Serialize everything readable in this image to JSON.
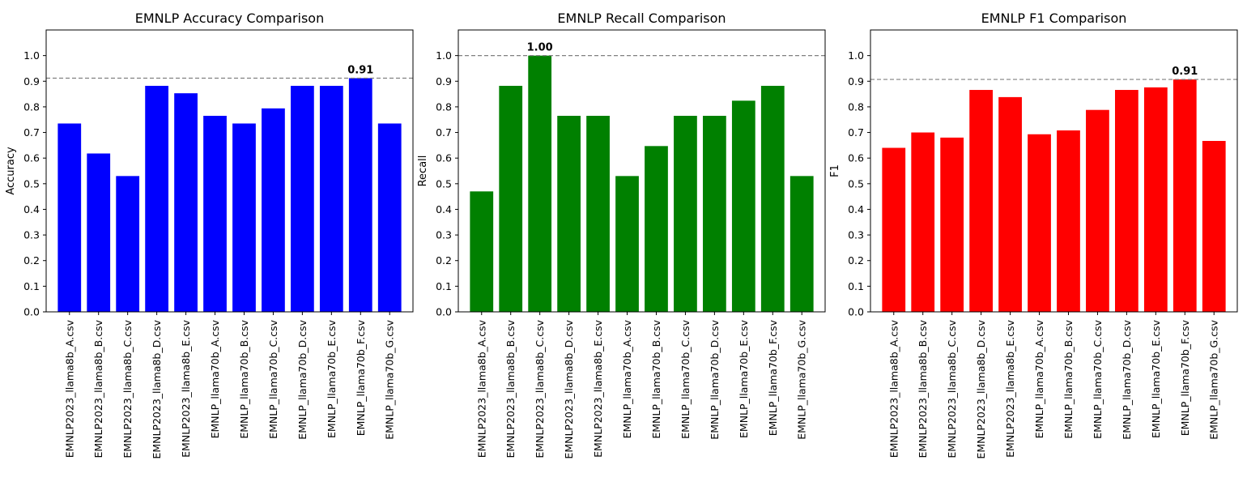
{
  "chart_data": [
    {
      "type": "bar",
      "title": "EMNLP Accuracy Comparison",
      "xlabel": "",
      "ylabel": "Accuracy",
      "color": "#0000ff",
      "categories": [
        "EMNLP2023_llama8b_A.csv",
        "EMNLP2023_llama8b_B.csv",
        "EMNLP2023_llama8b_C.csv",
        "EMNLP2023_llama8b_D.csv",
        "EMNLP2023_llama8b_E.csv",
        "EMNLP_llama70b_A.csv",
        "EMNLP_llama70b_B.csv",
        "EMNLP_llama70b_C.csv",
        "EMNLP_llama70b_D.csv",
        "EMNLP_llama70b_E.csv",
        "EMNLP_llama70b_F.csv",
        "EMNLP_llama70b_G.csv"
      ],
      "values": [
        0.735,
        0.618,
        0.53,
        0.882,
        0.853,
        0.765,
        0.735,
        0.794,
        0.882,
        0.882,
        0.912,
        0.735
      ],
      "ylim": [
        0,
        1.1
      ],
      "yticks": [
        "0.0",
        "0.1",
        "0.2",
        "0.3",
        "0.4",
        "0.5",
        "0.6",
        "0.7",
        "0.8",
        "0.9",
        "1.0"
      ],
      "ref_line": 0.912,
      "best_index": 10,
      "best_label": "0.91",
      "grid": false
    },
    {
      "type": "bar",
      "title": "EMNLP Recall Comparison",
      "xlabel": "",
      "ylabel": "Recall",
      "color": "#008000",
      "categories": [
        "EMNLP2023_llama8b_A.csv",
        "EMNLP2023_llama8b_B.csv",
        "EMNLP2023_llama8b_C.csv",
        "EMNLP2023_llama8b_D.csv",
        "EMNLP2023_llama8b_E.csv",
        "EMNLP_llama70b_A.csv",
        "EMNLP_llama70b_B.csv",
        "EMNLP_llama70b_C.csv",
        "EMNLP_llama70b_D.csv",
        "EMNLP_llama70b_E.csv",
        "EMNLP_llama70b_F.csv",
        "EMNLP_llama70b_G.csv"
      ],
      "values": [
        0.47,
        0.882,
        1.0,
        0.765,
        0.765,
        0.53,
        0.647,
        0.765,
        0.765,
        0.824,
        0.882,
        0.53
      ],
      "ylim": [
        0,
        1.1
      ],
      "yticks": [
        "0.0",
        "0.1",
        "0.2",
        "0.3",
        "0.4",
        "0.5",
        "0.6",
        "0.7",
        "0.8",
        "0.9",
        "1.0"
      ],
      "ref_line": 1.0,
      "best_index": 2,
      "best_label": "1.00",
      "grid": false
    },
    {
      "type": "bar",
      "title": "EMNLP F1 Comparison",
      "xlabel": "",
      "ylabel": "F1",
      "color": "#ff0000",
      "categories": [
        "EMNLP2023_llama8b_A.csv",
        "EMNLP2023_llama8b_B.csv",
        "EMNLP2023_llama8b_C.csv",
        "EMNLP2023_llama8b_D.csv",
        "EMNLP2023_llama8b_E.csv",
        "EMNLP_llama70b_A.csv",
        "EMNLP_llama70b_B.csv",
        "EMNLP_llama70b_C.csv",
        "EMNLP_llama70b_D.csv",
        "EMNLP_llama70b_E.csv",
        "EMNLP_llama70b_F.csv",
        "EMNLP_llama70b_G.csv"
      ],
      "values": [
        0.64,
        0.7,
        0.68,
        0.866,
        0.838,
        0.693,
        0.708,
        0.788,
        0.866,
        0.876,
        0.907,
        0.667
      ],
      "ylim": [
        0,
        1.1
      ],
      "yticks": [
        "0.0",
        "0.1",
        "0.2",
        "0.3",
        "0.4",
        "0.5",
        "0.6",
        "0.7",
        "0.8",
        "0.9",
        "1.0"
      ],
      "ref_line": 0.907,
      "best_index": 10,
      "best_label": "0.91",
      "grid": false
    }
  ],
  "style": {
    "axis_color": "#000000",
    "ref_line_color": "#808080"
  }
}
